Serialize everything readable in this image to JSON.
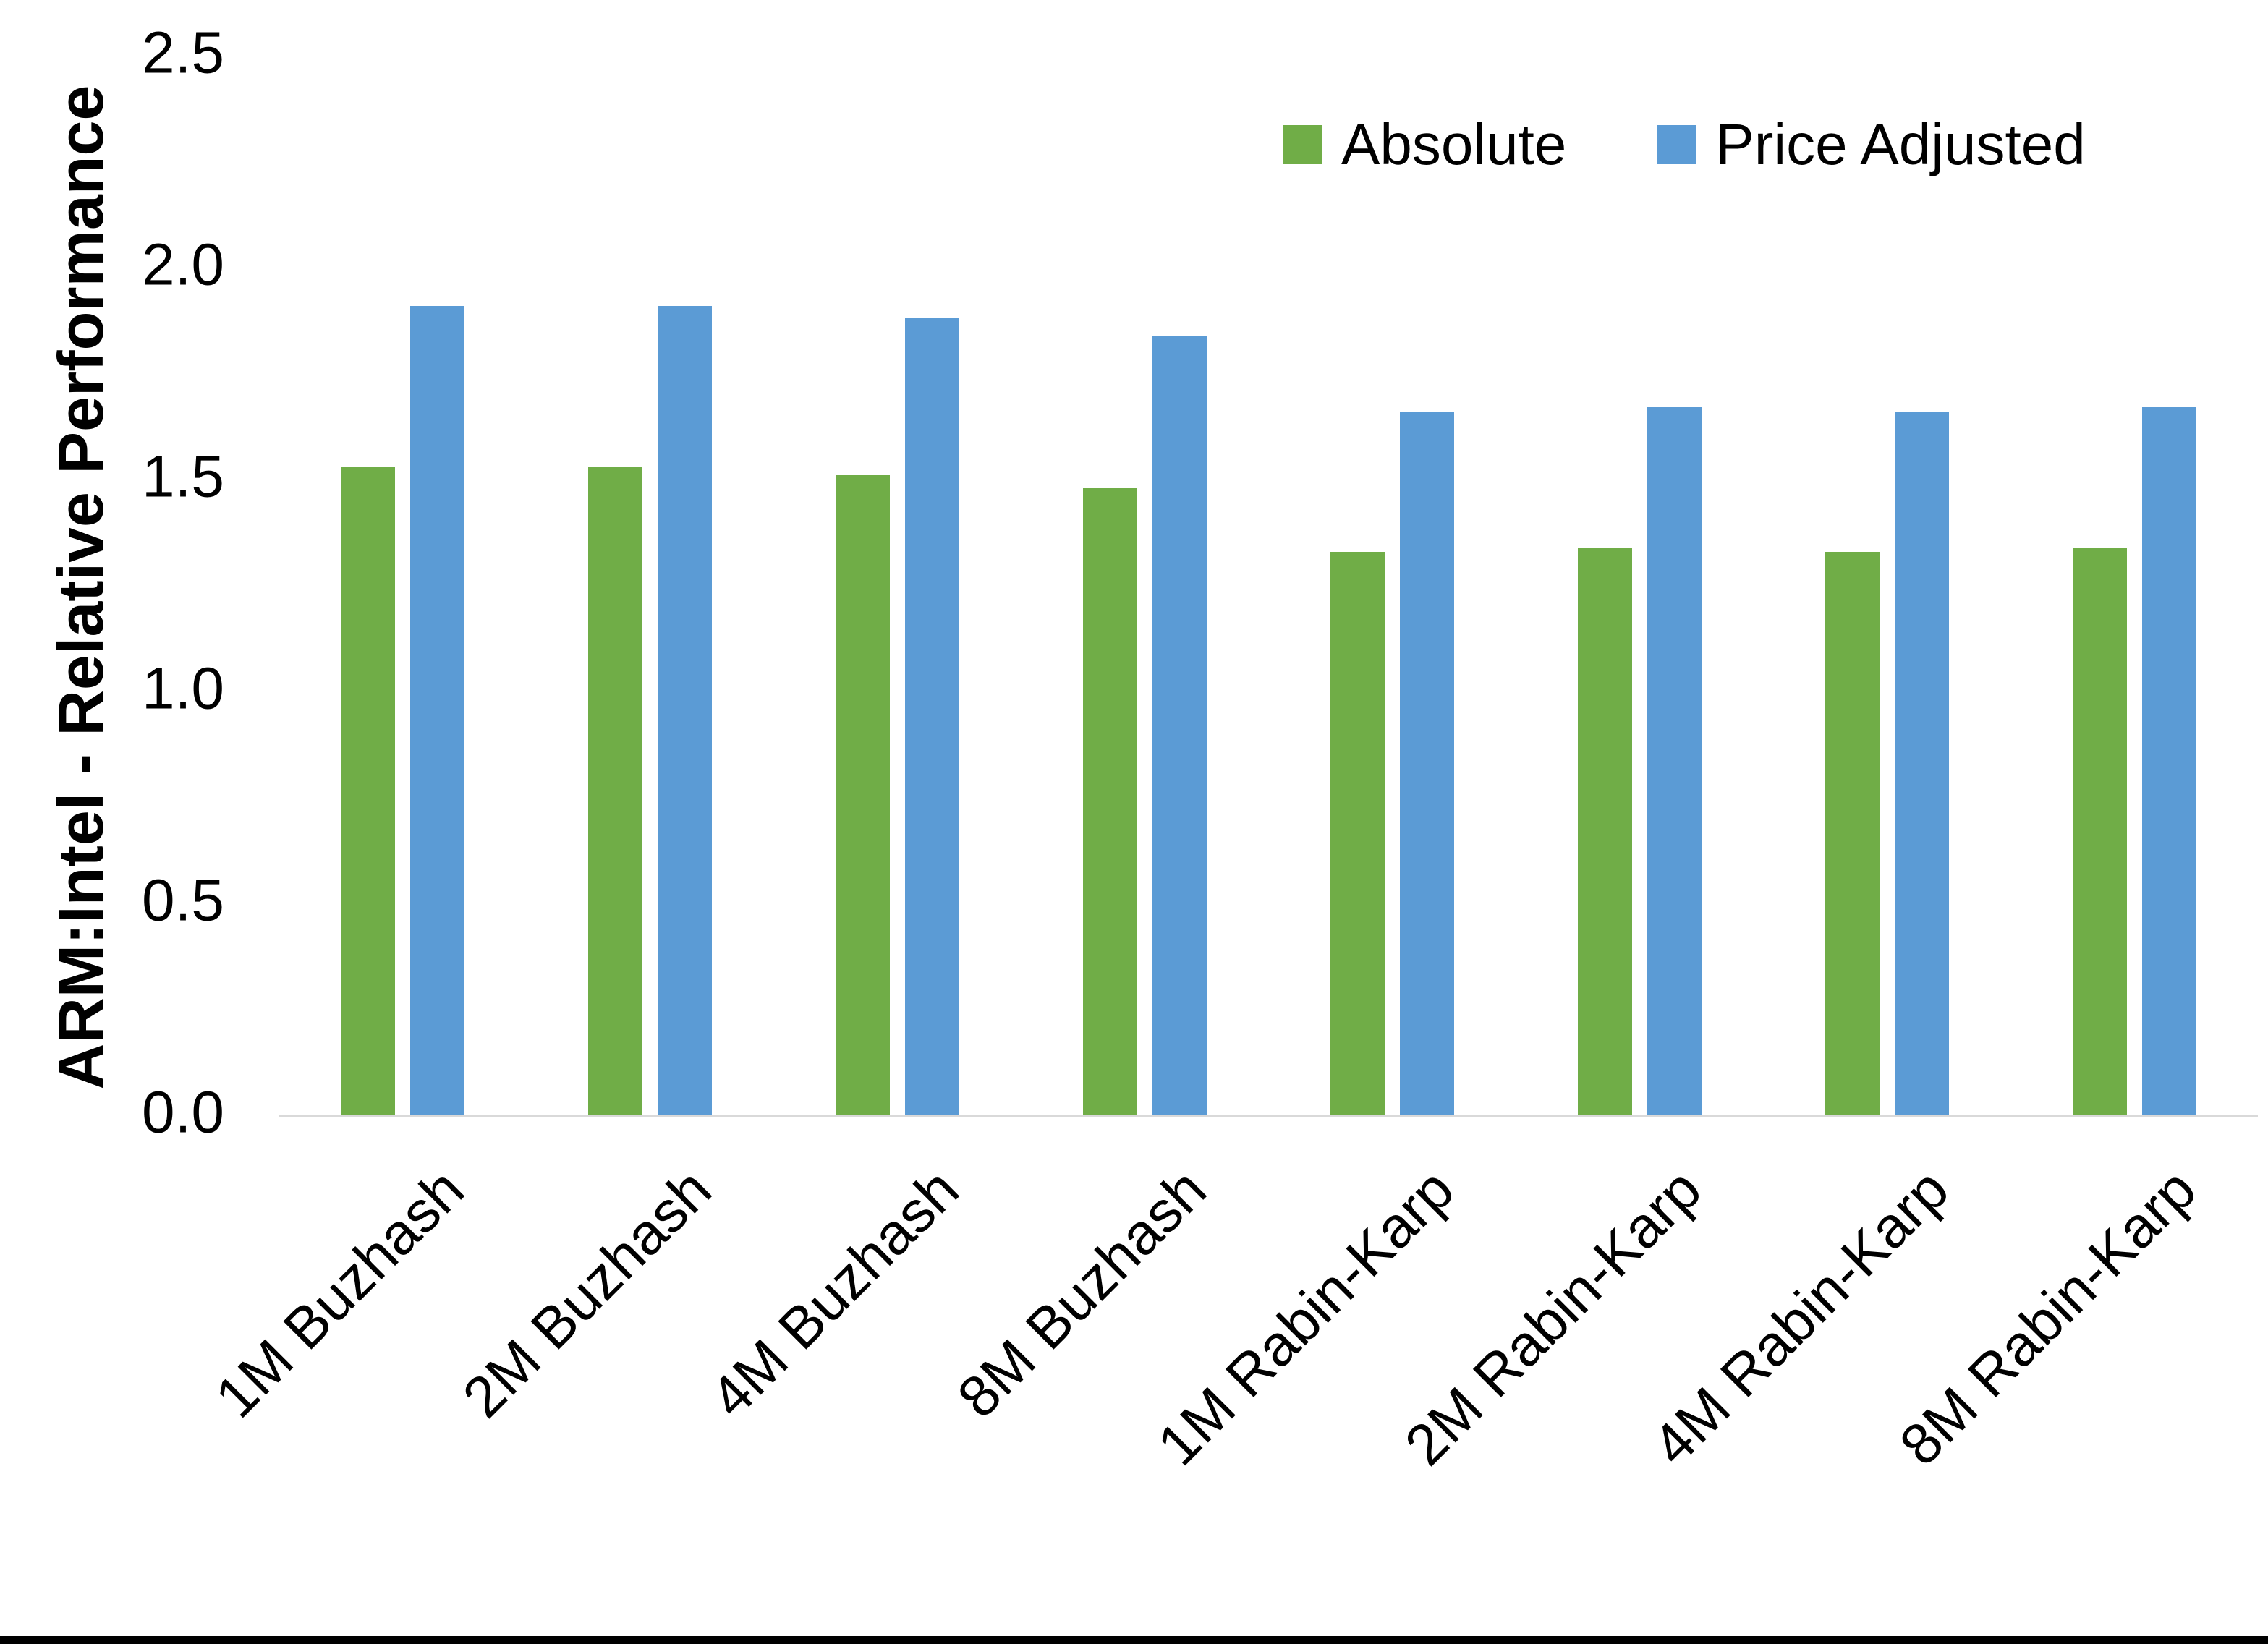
{
  "chart_data": {
    "type": "bar",
    "title": "",
    "ylabel": "ARM:Intel - Relative Performance",
    "xlabel": "",
    "categories": [
      "1M Buzhash",
      "2M Buzhash",
      "4M Buzhash",
      "8M Buzhash",
      "1M Rabin-Karp",
      "2M Rabin-Karp",
      "4M Rabin-Karp",
      "8M Rabin-Karp"
    ],
    "series": [
      {
        "name": "Absolute",
        "color": "#70AD47",
        "values": [
          1.53,
          1.53,
          1.51,
          1.48,
          1.33,
          1.34,
          1.33,
          1.34
        ]
      },
      {
        "name": "Price Adjusted",
        "color": "#5B9BD5",
        "values": [
          1.91,
          1.91,
          1.88,
          1.84,
          1.66,
          1.67,
          1.66,
          1.67
        ]
      }
    ],
    "ylim": [
      0,
      2.5
    ],
    "ytick_step": 0.5,
    "ytick_labels": [
      "0.0",
      "0.5",
      "1.0",
      "1.5",
      "2.0",
      "2.5"
    ],
    "grid": false,
    "legend_position": "top-right",
    "colors": {
      "axis_line": "#d9d9d9",
      "text": "#000000",
      "background": "#ffffff",
      "bottom_border": "#000000"
    }
  }
}
